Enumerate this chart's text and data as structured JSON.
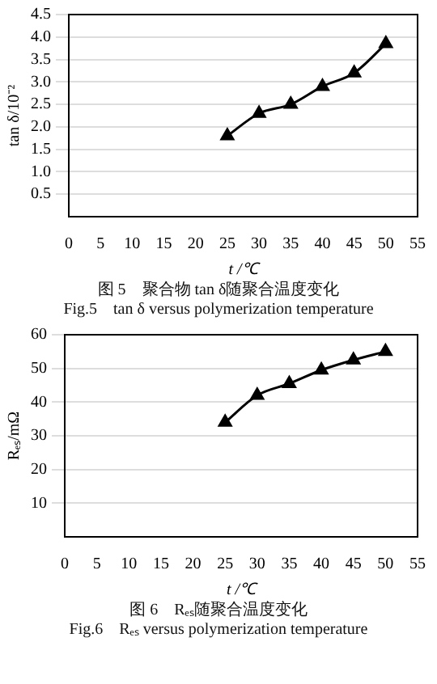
{
  "chart_data": [
    {
      "type": "line",
      "xlabel": "t /℃",
      "ylabel": "tan δ/10⁻²",
      "x": [
        25,
        30,
        35,
        40,
        45,
        50
      ],
      "series": [
        {
          "color": "#000000",
          "values": [
            1.8,
            2.3,
            2.5,
            2.9,
            3.2,
            3.85
          ]
        }
      ],
      "xlim": [
        0,
        55
      ],
      "xticks": [
        0,
        5,
        10,
        15,
        20,
        25,
        30,
        35,
        40,
        45,
        50,
        55
      ],
      "ylim": [
        0,
        4.5
      ],
      "yticks": [
        0.5,
        {
          "value": 1,
          "label": "1.0"
        },
        1.5,
        {
          "value": 2,
          "label": "2.0"
        },
        2.5,
        {
          "value": 3,
          "label": "3.0"
        },
        3.5,
        {
          "value": 4,
          "label": "4.0"
        },
        4.5
      ],
      "grid": "y",
      "marker": "triangle",
      "line_style": "solid",
      "legend": false,
      "annotations": [
        "图 5　聚合物 tan δ随聚合温度变化",
        "Fig.5　tan δ versus polymerization temperature"
      ]
    },
    {
      "type": "line",
      "xlabel": "t /℃",
      "ylabel": "Rₑₛ/mΩ",
      "x": [
        25,
        30,
        35,
        40,
        45,
        50
      ],
      "series": [
        {
          "color": "#000000",
          "values": [
            34,
            42,
            45.5,
            49.5,
            52.5,
            55
          ]
        }
      ],
      "xlim": [
        0,
        55
      ],
      "xticks": [
        0,
        5,
        10,
        15,
        20,
        25,
        30,
        35,
        40,
        45,
        50,
        55
      ],
      "ylim": [
        0,
        60
      ],
      "yticks": [
        10,
        20,
        30,
        40,
        50,
        60
      ],
      "grid": "y",
      "marker": "triangle",
      "line_style": "solid",
      "legend": false,
      "annotations": [
        "图 6　Rₑₛ随聚合温度变化",
        "Fig.6　Rₑₛ versus polymerization temperature"
      ]
    }
  ]
}
